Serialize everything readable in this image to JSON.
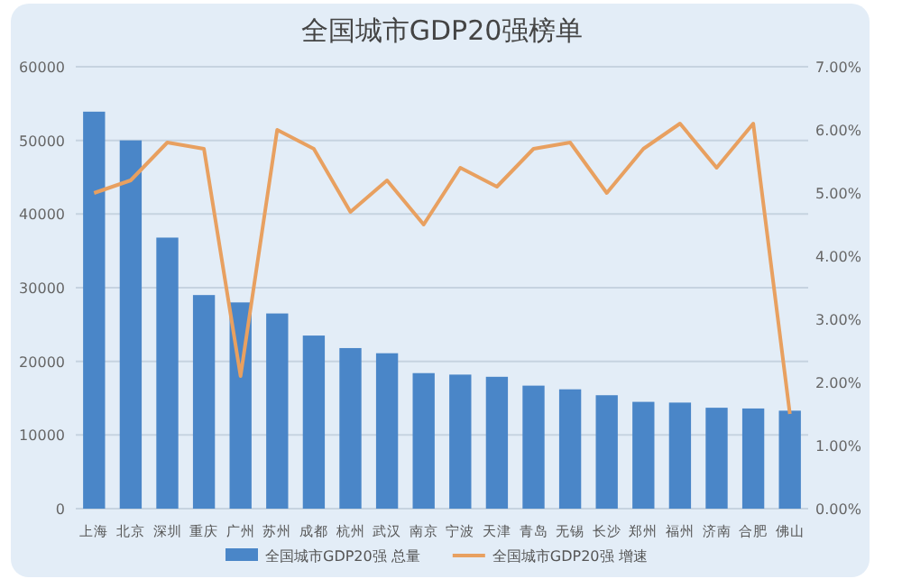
{
  "chart_data": {
    "type": "bar",
    "title": "全国城市GDP20强榜单",
    "categories": [
      "上海",
      "北京",
      "深圳",
      "重庆",
      "广州",
      "苏州",
      "成都",
      "杭州",
      "武汉",
      "南京",
      "宁波",
      "天津",
      "青岛",
      "无锡",
      "长沙",
      "郑州",
      "福州",
      "济南",
      "合肥",
      "佛山"
    ],
    "series": [
      {
        "name": "全国城市GDP20强 总量",
        "color": "#4a86c8",
        "values": [
          53900,
          50000,
          36800,
          29000,
          28000,
          26500,
          23500,
          21800,
          21100,
          18400,
          18200,
          17900,
          16700,
          16200,
          15400,
          14500,
          14400,
          13700,
          13600,
          13300
        ]
      },
      {
        "name": "全国城市GDP20强 增速",
        "type": "line",
        "axis": "y2",
        "color": "#e8a060",
        "values": [
          5.0,
          5.2,
          5.8,
          5.7,
          2.1,
          6.0,
          5.7,
          4.7,
          5.2,
          4.5,
          5.4,
          5.1,
          5.7,
          5.8,
          5.0,
          5.7,
          6.1,
          5.4,
          6.1,
          1.5
        ]
      }
    ],
    "ylim": [
      0,
      60000
    ],
    "yticks": [
      0,
      10000,
      20000,
      30000,
      40000,
      50000,
      60000
    ],
    "y2lim": [
      0,
      7
    ],
    "y2ticks": [
      {
        "value": 0,
        "label": "0.00%"
      },
      {
        "value": 1,
        "label": "1.00%"
      },
      {
        "value": 2,
        "label": "2.00%"
      },
      {
        "value": 3,
        "label": "3.00%"
      },
      {
        "value": 4,
        "label": "4.00%"
      },
      {
        "value": 5,
        "label": "5.00%"
      },
      {
        "value": 6,
        "label": "6.00%"
      },
      {
        "value": 7,
        "label": "7.00%"
      }
    ],
    "grid": "y",
    "legend": "bottom"
  }
}
